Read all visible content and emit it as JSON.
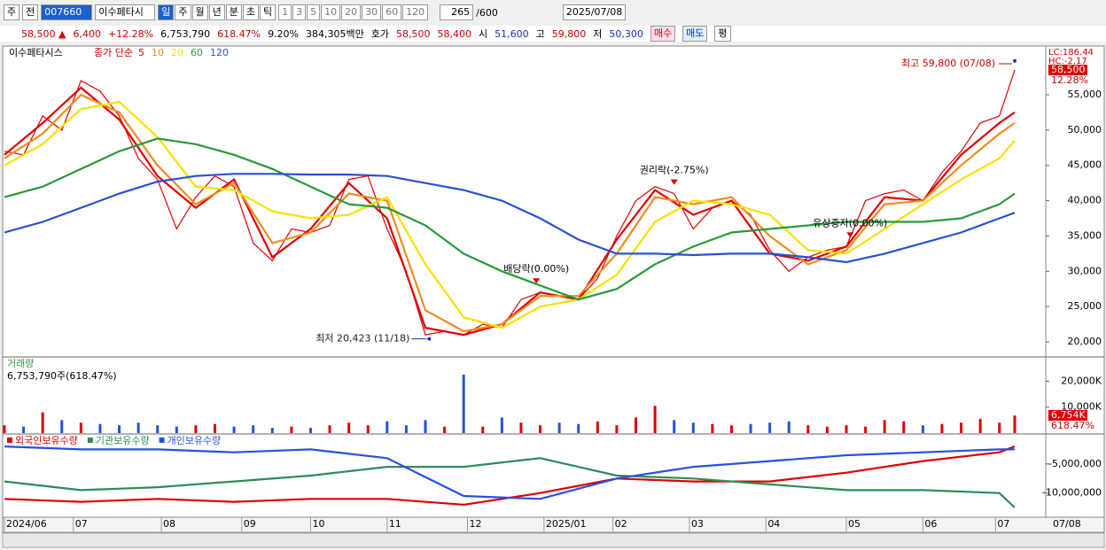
{
  "toolbar": {
    "market": "주",
    "prev": "전",
    "code": "007660",
    "name": "이수페타시",
    "periods": [
      "일",
      "주",
      "월",
      "년",
      "분",
      "초",
      "틱"
    ],
    "intervals": [
      "1",
      "3",
      "5",
      "10",
      "20",
      "30",
      "60",
      "120"
    ],
    "count": "265",
    "max": "/600",
    "date": "2025/07/08"
  },
  "quote": {
    "price": "58,500 ▲",
    "change": "6,400",
    "change_pct": "+12.28%",
    "volume": "6,753,790",
    "volume_ratio": "618.47%",
    "turnover": "9.20%",
    "amount": "384,305백만",
    "ask_bid_label": "호가",
    "ask": "58,500",
    "bid": "58,400",
    "open_label": "시",
    "open": "51,600",
    "high_label": "고",
    "high": "59,800",
    "low_label": "저",
    "low": "50,300",
    "buy": "매수",
    "sell": "매도",
    "avg": "평"
  },
  "chart_data": [
    {
      "type": "line",
      "title": "이수페타시스",
      "legend_prefix": "종가 단순",
      "lc_label": "LC:186.44",
      "hc_label": "HC:-2.17",
      "last_label": "58,500",
      "last_pct_label": "12.28%",
      "xlim": [
        0,
        264
      ],
      "ylim": [
        18000,
        61900
      ],
      "yticks": [
        {
          "value": 20000,
          "label": "20,000"
        },
        {
          "value": 25000,
          "label": "25,000"
        },
        {
          "value": 30000,
          "label": "30,000"
        },
        {
          "value": 35000,
          "label": "35,000"
        },
        {
          "value": 40000,
          "label": "40,000"
        },
        {
          "value": 45000,
          "label": "45,000"
        },
        {
          "value": 50000,
          "label": "50,000"
        },
        {
          "value": 55000,
          "label": "55,000"
        }
      ],
      "series": [
        {
          "color": "#e00000",
          "x": [
            0,
            5,
            10,
            15,
            20,
            25,
            30,
            35,
            40,
            45,
            50,
            55,
            60,
            65,
            70,
            75,
            80,
            85,
            90,
            95,
            100,
            105,
            110,
            115,
            120,
            125,
            130,
            135,
            140,
            145,
            150,
            155,
            160,
            165,
            170,
            175,
            180,
            185,
            190,
            195,
            200,
            205,
            210,
            215,
            220,
            225,
            230,
            235,
            240,
            245,
            250,
            255,
            260,
            264
          ],
          "values": [
            47000,
            46500,
            52000,
            50000,
            57000,
            55500,
            52000,
            46000,
            43000,
            36000,
            40500,
            43500,
            42000,
            34000,
            31500,
            36000,
            35500,
            36500,
            43000,
            43500,
            36000,
            30000,
            21000,
            21500,
            21000,
            22500,
            22000,
            26000,
            27000,
            26500,
            26000,
            29000,
            35000,
            40000,
            42000,
            41000,
            36000,
            39000,
            40000,
            38000,
            33000,
            30000,
            32000,
            33000,
            33500,
            40000,
            41000,
            41500,
            40000,
            44000,
            47000,
            51000,
            52000,
            58500
          ]
        },
        {
          "name": "5",
          "color": "#e00000",
          "x": [
            0,
            10,
            20,
            30,
            40,
            50,
            60,
            70,
            80,
            90,
            100,
            110,
            120,
            130,
            140,
            150,
            160,
            170,
            180,
            190,
            200,
            210,
            220,
            230,
            240,
            250,
            260,
            264
          ],
          "values": [
            46500,
            51000,
            56000,
            51500,
            43500,
            39000,
            43000,
            32000,
            36000,
            42500,
            37500,
            22000,
            21000,
            22500,
            27000,
            26000,
            34500,
            41500,
            38000,
            40000,
            32500,
            31500,
            33500,
            40500,
            40000,
            46500,
            51000,
            52500
          ]
        },
        {
          "name": "10",
          "color": "#f08c1e",
          "x": [
            0,
            10,
            20,
            30,
            40,
            50,
            60,
            70,
            80,
            90,
            100,
            110,
            120,
            130,
            140,
            150,
            160,
            170,
            180,
            190,
            200,
            210,
            220,
            230,
            240,
            250,
            260,
            264
          ],
          "values": [
            46000,
            49500,
            55000,
            52500,
            45000,
            39500,
            42500,
            34000,
            35500,
            41000,
            40000,
            24500,
            21500,
            22500,
            26500,
            26500,
            32500,
            40500,
            39500,
            40500,
            35000,
            31000,
            33000,
            39500,
            40000,
            45000,
            49500,
            51000
          ]
        },
        {
          "name": "20",
          "color": "#f5e100",
          "x": [
            0,
            10,
            20,
            30,
            40,
            50,
            60,
            70,
            80,
            90,
            100,
            110,
            120,
            130,
            140,
            150,
            160,
            170,
            180,
            190,
            200,
            210,
            220,
            230,
            240,
            250,
            260,
            264
          ],
          "values": [
            45000,
            48000,
            53000,
            54000,
            49000,
            42000,
            41500,
            38500,
            37500,
            38000,
            40500,
            31000,
            23500,
            22000,
            25000,
            26000,
            29500,
            37000,
            40000,
            39500,
            38000,
            33000,
            32500,
            36000,
            39500,
            43000,
            46000,
            48500
          ]
        },
        {
          "name": "60",
          "color": "#2a9a3a",
          "x": [
            0,
            10,
            20,
            30,
            40,
            50,
            60,
            70,
            80,
            90,
            100,
            110,
            120,
            130,
            140,
            150,
            160,
            170,
            180,
            190,
            200,
            210,
            220,
            230,
            240,
            250,
            260,
            264
          ],
          "values": [
            40500,
            42000,
            44500,
            47000,
            48800,
            48000,
            46500,
            44500,
            42000,
            39500,
            39000,
            36500,
            32500,
            30000,
            28000,
            26000,
            27500,
            31000,
            33500,
            35500,
            36000,
            36500,
            37000,
            37000,
            37000,
            37500,
            39500,
            41000
          ]
        },
        {
          "name": "120",
          "color": "#2850d8",
          "x": [
            0,
            10,
            20,
            30,
            40,
            50,
            60,
            70,
            80,
            90,
            100,
            110,
            120,
            130,
            140,
            150,
            160,
            170,
            180,
            190,
            200,
            210,
            220,
            230,
            240,
            250,
            260,
            264
          ],
          "values": [
            35500,
            37000,
            39000,
            41000,
            42700,
            43500,
            43800,
            43800,
            43700,
            43700,
            43500,
            42500,
            41500,
            40000,
            37500,
            34500,
            32500,
            32500,
            32300,
            32500,
            32500,
            32000,
            31300,
            32500,
            34000,
            35500,
            37500,
            38300
          ]
        }
      ],
      "annotations": [
        {
          "text": "최고 59,800 (07/08)",
          "x": 264,
          "value": 59800
        },
        {
          "text": "최저 20,423 (11/18)",
          "x": 111,
          "value": 20423
        }
      ],
      "events": [
        {
          "text": "배당락(0.00%)",
          "x": 139
        },
        {
          "text": "권리락(-2.75%)",
          "x": 175
        },
        {
          "text": "유상증자(0.00%)",
          "x": 221
        }
      ]
    },
    {
      "type": "bar",
      "title": "거래량",
      "subtitle": "6,753,790주(618.47%)",
      "last_label": "6,754K",
      "last_pct_label": "618.47%",
      "up_color": "#e00000",
      "down_color": "#2850d8",
      "xlim": [
        0,
        264
      ],
      "ylim": [
        0,
        29000
      ],
      "yticks": [
        {
          "value": 10000,
          "label": "10,000K"
        },
        {
          "value": 20000,
          "label": "20,000K"
        }
      ],
      "x": [
        0,
        5,
        10,
        15,
        20,
        25,
        30,
        35,
        40,
        45,
        50,
        55,
        60,
        65,
        70,
        75,
        80,
        85,
        90,
        95,
        100,
        105,
        110,
        115,
        120,
        125,
        130,
        135,
        140,
        145,
        150,
        155,
        160,
        165,
        170,
        175,
        180,
        185,
        190,
        195,
        200,
        205,
        210,
        215,
        220,
        225,
        230,
        235,
        240,
        245,
        250,
        255,
        260,
        264
      ],
      "values": [
        3000,
        2500,
        8000,
        5000,
        4000,
        3500,
        3000,
        4000,
        3000,
        2500,
        3000,
        3500,
        2500,
        3000,
        2000,
        2500,
        2000,
        3000,
        4000,
        3000,
        4500,
        3000,
        5000,
        2500,
        22500,
        2500,
        6000,
        4000,
        3000,
        4000,
        3500,
        4500,
        3000,
        6000,
        10500,
        5000,
        4000,
        3500,
        3000,
        3500,
        4000,
        4500,
        3000,
        2500,
        3000,
        2500,
        5000,
        4500,
        3000,
        3500,
        4000,
        5500,
        4000,
        6754
      ]
    },
    {
      "type": "line",
      "xlim": [
        0,
        264
      ],
      "ylim": [
        -14000000,
        0
      ],
      "yticks": [
        {
          "value": -10000000,
          "label": "-10,000,000"
        },
        {
          "value": -5000000,
          "label": "-5,000,000"
        }
      ],
      "xticks": [
        {
          "value": 0,
          "label": "2024/06"
        },
        {
          "value": 18,
          "label": "07"
        },
        {
          "value": 41,
          "label": "08"
        },
        {
          "value": 62,
          "label": "09"
        },
        {
          "value": 80,
          "label": "10"
        },
        {
          "value": 100,
          "label": "11"
        },
        {
          "value": 121,
          "label": "12"
        },
        {
          "value": 141,
          "label": "2025/01"
        },
        {
          "value": 159,
          "label": "02"
        },
        {
          "value": 179,
          "label": "03"
        },
        {
          "value": 199,
          "label": "04"
        },
        {
          "value": 220,
          "label": "05"
        },
        {
          "value": 240,
          "label": "06"
        },
        {
          "value": 259,
          "label": "07"
        }
      ],
      "current_label": "07/08",
      "series": [
        {
          "name": "외국인보유수량",
          "color": "#e00000",
          "x": [
            0,
            20,
            40,
            60,
            80,
            100,
            120,
            140,
            160,
            180,
            200,
            220,
            240,
            260,
            264
          ],
          "values": [
            -11000000,
            -11500000,
            -11000000,
            -11500000,
            -11000000,
            -11000000,
            -12000000,
            -10000000,
            -7500000,
            -8000000,
            -8000000,
            -6500000,
            -4500000,
            -3000000,
            -2000000
          ]
        },
        {
          "name": "기관보유수량",
          "color": "#2e8b57",
          "x": [
            0,
            20,
            40,
            60,
            80,
            100,
            120,
            140,
            160,
            180,
            200,
            220,
            240,
            260,
            264
          ],
          "values": [
            -8000000,
            -9500000,
            -9000000,
            -8000000,
            -7000000,
            -5500000,
            -5500000,
            -4000000,
            -7000000,
            -7500000,
            -8500000,
            -9500000,
            -9500000,
            -10000000,
            -12500000
          ]
        },
        {
          "name": "개인보유수량",
          "color": "#2850e0",
          "x": [
            0,
            20,
            40,
            60,
            80,
            100,
            120,
            140,
            160,
            180,
            200,
            220,
            240,
            260,
            264
          ],
          "values": [
            -2000000,
            -2500000,
            -2500000,
            -3000000,
            -2500000,
            -4000000,
            -10500000,
            -11000000,
            -7500000,
            -5500000,
            -4500000,
            -3500000,
            -3000000,
            -2500000,
            -2500000
          ]
        }
      ]
    }
  ]
}
